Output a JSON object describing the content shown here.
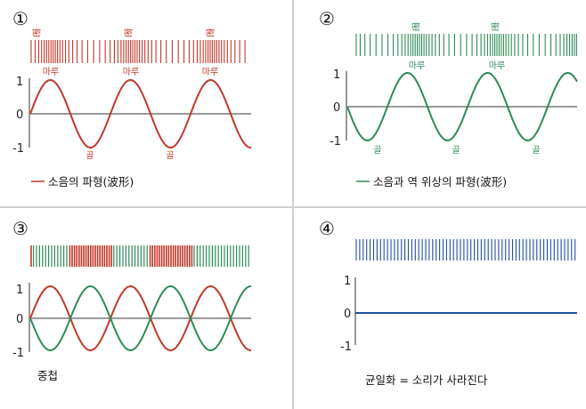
{
  "panels": [
    {
      "number": "①",
      "dense_label": "密",
      "crest_label": "마루",
      "trough_label": "골",
      "caption": "소음의 파형(波形)",
      "ticks": [
        "1",
        "0",
        "-1"
      ]
    },
    {
      "number": "②",
      "dense_label": "密",
      "crest_label": "마루",
      "trough_label": "골",
      "caption": "소음과 역 위상의 파형(波形)",
      "ticks": [
        "1",
        "0",
        "-1"
      ]
    },
    {
      "number": "③",
      "caption": "중첩",
      "ticks": [
        "1",
        "0",
        "-1"
      ]
    },
    {
      "number": "④",
      "caption": "균일화 = 소리가 사라진다",
      "ticks": [
        "1",
        "0",
        "-1"
      ]
    }
  ],
  "colors": {
    "noise": "#c0392b",
    "anti": "#2e8b57",
    "flat": "#1f4fa0",
    "divider": "#cfcfcf",
    "axis": "#999999"
  }
}
